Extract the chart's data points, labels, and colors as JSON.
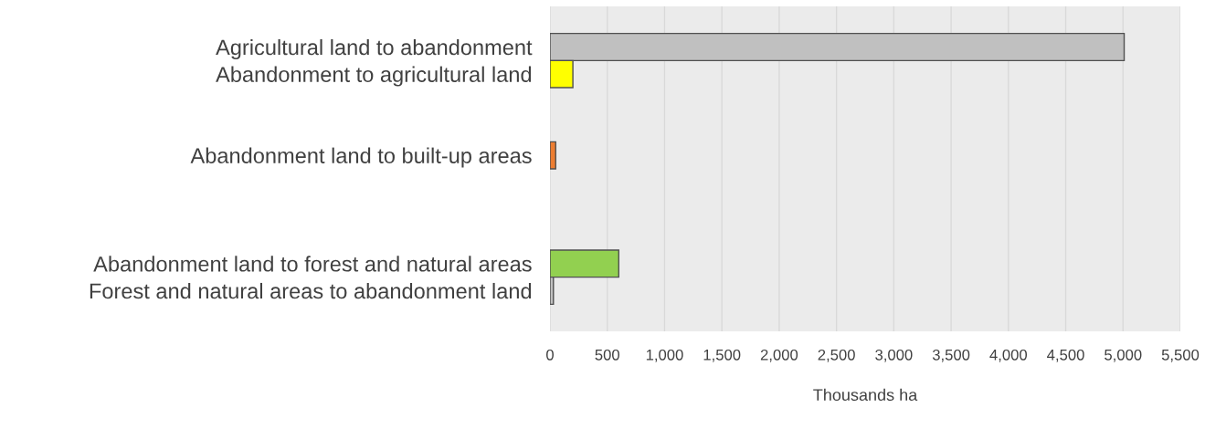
{
  "chart_data": {
    "type": "bar",
    "orientation": "horizontal",
    "categories": [
      null,
      "Agricultural land to abandonment",
      "Abandonment to agricultural land",
      null,
      null,
      "Abandonment land to built-up areas",
      null,
      null,
      null,
      "Abandonment land to forest and natural areas",
      "Forest and natural areas to abandonment land",
      null
    ],
    "values": [
      null,
      5010,
      200,
      null,
      null,
      50,
      null,
      null,
      null,
      600,
      30,
      null
    ],
    "colors": [
      "#c0c0c0",
      "#c0c0c0",
      "#ffff00",
      "#c0c0c0",
      "#c0c0c0",
      "#ed7d31",
      "#c0c0c0",
      "#c0c0c0",
      "#c0c0c0",
      "#92d050",
      "#c0c0c0",
      "#c0c0c0"
    ],
    "xlabel": "Thousands ha",
    "xlim": [
      0,
      5500
    ],
    "xticks": [
      0,
      500,
      {
        "value": 1000,
        "label": "1,000"
      },
      {
        "value": 1500,
        "label": "1,500"
      },
      {
        "value": 2000,
        "label": "2,000"
      },
      {
        "value": 2500,
        "label": "2,500"
      },
      {
        "value": 3000,
        "label": "3,000"
      },
      {
        "value": 3500,
        "label": "3,500"
      },
      {
        "value": 4000,
        "label": "4,000"
      },
      {
        "value": 4500,
        "label": "4,500"
      },
      {
        "value": 5000,
        "label": "5,000"
      },
      {
        "value": 5500,
        "label": "5,500"
      }
    ],
    "grid": "x"
  }
}
